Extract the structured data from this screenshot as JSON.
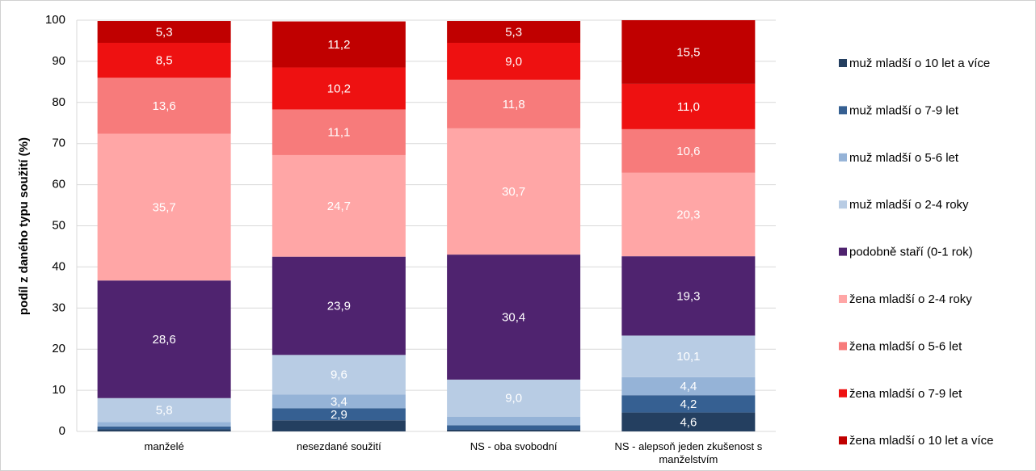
{
  "chart_data": {
    "type": "stacked_bar",
    "y_label": "podíl z daného typu soužití (%)",
    "categories": [
      "manželé",
      "nesezdané soužití",
      "NS - oba svobodní",
      "NS - alepsoň jeden zkušenost s manželstvím"
    ],
    "ylim": [
      0,
      100
    ],
    "yticks": [
      0,
      10,
      20,
      30,
      40,
      50,
      60,
      70,
      80,
      90,
      100
    ],
    "grid": true,
    "legend": "right",
    "series": [
      {
        "name": "muž mladší o 10 let a více",
        "color": "#243f60",
        "values": [
          0.5,
          2.7,
          0.4,
          4.6
        ],
        "value_labels": [
          null,
          null,
          null,
          "4,6"
        ]
      },
      {
        "name": "muž mladší o 7-9 let",
        "color": "#366092",
        "values": [
          0.7,
          2.9,
          1.1,
          4.2
        ],
        "value_labels": [
          null,
          "2,9",
          null,
          "4,2"
        ]
      },
      {
        "name": "muž mladší o 5-6 let",
        "color": "#95b3d7",
        "values": [
          1.1,
          3.4,
          2.1,
          4.4
        ],
        "value_labels": [
          null,
          "3,4",
          null,
          "4,4"
        ]
      },
      {
        "name": "muž mladší o 2-4 roky",
        "color": "#b8cce4",
        "values": [
          5.8,
          9.6,
          9.0,
          10.1
        ],
        "value_labels": [
          "5,8",
          "9,6",
          "9,0",
          "10,1"
        ]
      },
      {
        "name": "podobně staří (0-1 rok)",
        "color": "#4f236f",
        "values": [
          28.6,
          23.9,
          30.4,
          19.3
        ],
        "value_labels": [
          "28,6",
          "23,9",
          "30,4",
          "19,3"
        ]
      },
      {
        "name": "žena mladší o 2-4 roky",
        "color": "#ffa6a6",
        "values": [
          35.7,
          24.7,
          30.7,
          20.3
        ],
        "value_labels": [
          "35,7",
          "24,7",
          "30,7",
          "20,3"
        ]
      },
      {
        "name": "žena mladší o 5-6 let",
        "color": "#f77b7b",
        "values": [
          13.6,
          11.1,
          11.8,
          10.6
        ],
        "value_labels": [
          "13,6",
          "11,1",
          "11,8",
          "10,6"
        ]
      },
      {
        "name": "žena mladší o 7-9 let",
        "color": "#ee1111",
        "values": [
          8.5,
          10.2,
          9.0,
          11.0
        ],
        "value_labels": [
          "8,5",
          "10,2",
          "9,0",
          "11,0"
        ]
      },
      {
        "name": "žena mladší o 10 let a více",
        "color": "#c00000",
        "values": [
          5.3,
          11.2,
          5.3,
          15.5
        ],
        "value_labels": [
          "5,3",
          "11,2",
          "5,3",
          "15,5"
        ]
      }
    ]
  }
}
